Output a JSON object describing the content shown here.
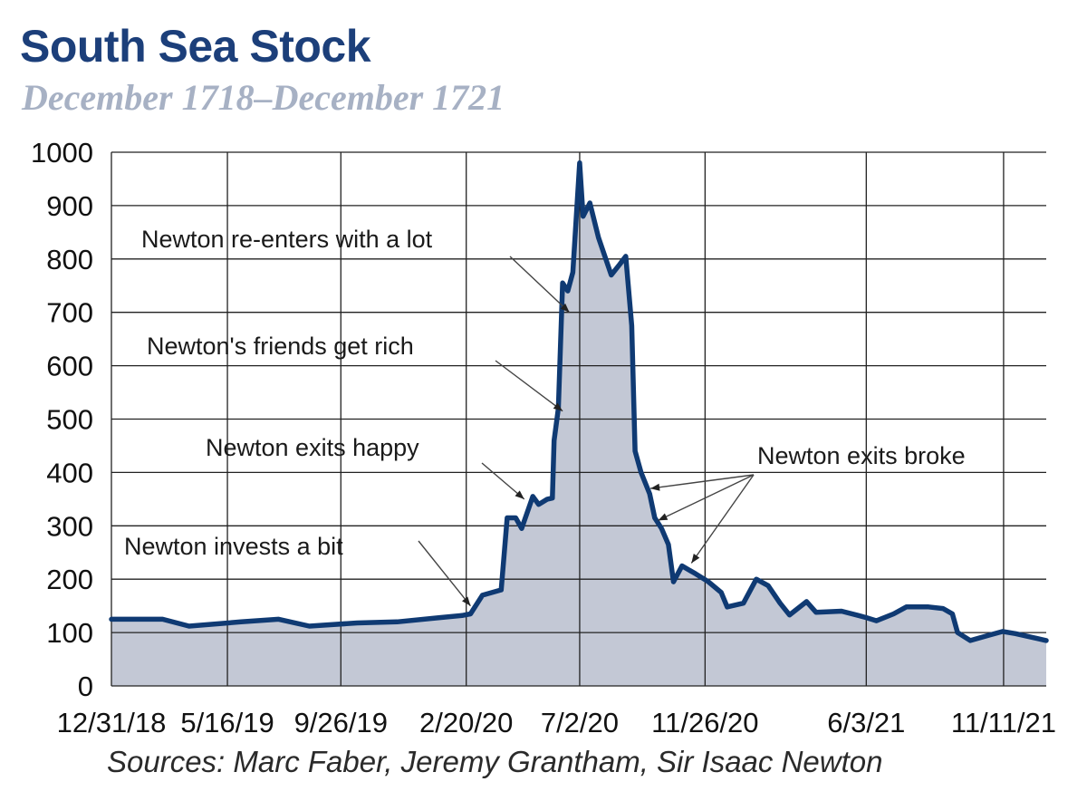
{
  "title": "South Sea Stock",
  "subtitle": "December 1718–December 1721",
  "source": "Sources: Marc Faber, Jeremy Grantham, Sir Isaac Newton",
  "colors": {
    "line": "#0f3a73",
    "fill": "#c3c8d5",
    "title": "#1c3f7a",
    "subtitle": "#a7b1c4",
    "grid": "#222222"
  },
  "chart_data": {
    "type": "area",
    "title": "South Sea Stock",
    "subtitle": "December 1718–December 1721",
    "xlabel": "",
    "ylabel": "",
    "ylim": [
      0,
      1000
    ],
    "yticks": [
      "0",
      "100",
      "200",
      "300",
      "400",
      "500",
      "600",
      "700",
      "800",
      "900",
      "1000"
    ],
    "xticks": [
      "12/31/18",
      "5/16/19",
      "9/26/19",
      "2/20/20",
      "7/2/20",
      "11/26/20",
      "6/3/21",
      "11/11/21"
    ],
    "grid": true,
    "series": [
      {
        "values": [
          [
            "1718-12-31",
            125
          ],
          [
            "1719-01-31",
            125
          ],
          [
            "1719-03-01",
            125
          ],
          [
            "1719-04-01",
            112
          ],
          [
            "1719-06-01",
            120
          ],
          [
            "1719-07-15",
            125
          ],
          [
            "1719-08-20",
            112
          ],
          [
            "1719-10-15",
            118
          ],
          [
            "1719-12-01",
            120
          ],
          [
            "1720-01-20",
            128
          ],
          [
            "1720-02-15",
            132
          ],
          [
            "1720-02-25",
            135
          ],
          [
            "1720-03-10",
            170
          ],
          [
            "1720-04-01",
            180
          ],
          [
            "1720-04-08",
            315
          ],
          [
            "1720-04-18",
            315
          ],
          [
            "1720-04-25",
            295
          ],
          [
            "1720-05-08",
            355
          ],
          [
            "1720-05-15",
            340
          ],
          [
            "1720-05-25",
            350
          ],
          [
            "1720-05-31",
            352
          ],
          [
            "1720-06-02",
            460
          ],
          [
            "1720-06-07",
            520
          ],
          [
            "1720-06-12",
            755
          ],
          [
            "1720-06-18",
            740
          ],
          [
            "1720-06-24",
            775
          ],
          [
            "1720-07-02",
            980
          ],
          [
            "1720-07-06",
            880
          ],
          [
            "1720-07-14",
            905
          ],
          [
            "1720-07-24",
            840
          ],
          [
            "1720-08-08",
            770
          ],
          [
            "1720-08-18",
            790
          ],
          [
            "1720-08-25",
            805
          ],
          [
            "1720-09-01",
            675
          ],
          [
            "1720-09-05",
            440
          ],
          [
            "1720-09-12",
            400
          ],
          [
            "1720-09-22",
            360
          ],
          [
            "1720-09-28",
            315
          ],
          [
            "1720-10-06",
            295
          ],
          [
            "1720-10-14",
            265
          ],
          [
            "1720-10-20",
            195
          ],
          [
            "1720-10-30",
            225
          ],
          [
            "1720-11-15",
            210
          ],
          [
            "1720-11-30",
            195
          ],
          [
            "1720-12-15",
            175
          ],
          [
            "1720-12-22",
            148
          ],
          [
            "1721-01-10",
            155
          ],
          [
            "1721-01-25",
            200
          ],
          [
            "1721-02-08",
            188
          ],
          [
            "1721-02-22",
            155
          ],
          [
            "1721-03-05",
            133
          ],
          [
            "1721-03-25",
            158
          ],
          [
            "1721-04-05",
            138
          ],
          [
            "1721-05-05",
            140
          ],
          [
            "1721-05-25",
            132
          ],
          [
            "1721-06-03",
            128
          ],
          [
            "1721-06-15",
            122
          ],
          [
            "1721-07-05",
            135
          ],
          [
            "1721-07-20",
            148
          ],
          [
            "1721-08-15",
            148
          ],
          [
            "1721-09-01",
            145
          ],
          [
            "1721-09-12",
            135
          ],
          [
            "1721-09-18",
            100
          ],
          [
            "1721-10-03",
            85
          ],
          [
            "1721-10-25",
            95
          ],
          [
            "1721-11-10",
            102
          ],
          [
            "1721-11-25",
            98
          ],
          [
            "1721-12-31",
            85
          ]
        ]
      }
    ],
    "annotations": [
      {
        "text": "Newton invests a bit",
        "target": [
          "1720-02-25",
          150
        ]
      },
      {
        "text": "Newton exits happy",
        "target": [
          "1720-04-28",
          350
        ]
      },
      {
        "text": "Newton's friends get rich",
        "target": [
          "1720-06-12",
          515
        ]
      },
      {
        "text": "Newton re-enters with a lot",
        "target": [
          "1720-06-20",
          700
        ]
      },
      {
        "text": "Newton exits broke",
        "targets": [
          [
            "1720-09-23",
            370
          ],
          [
            "1720-10-02",
            310
          ],
          [
            "1720-11-10",
            230
          ]
        ]
      }
    ]
  }
}
